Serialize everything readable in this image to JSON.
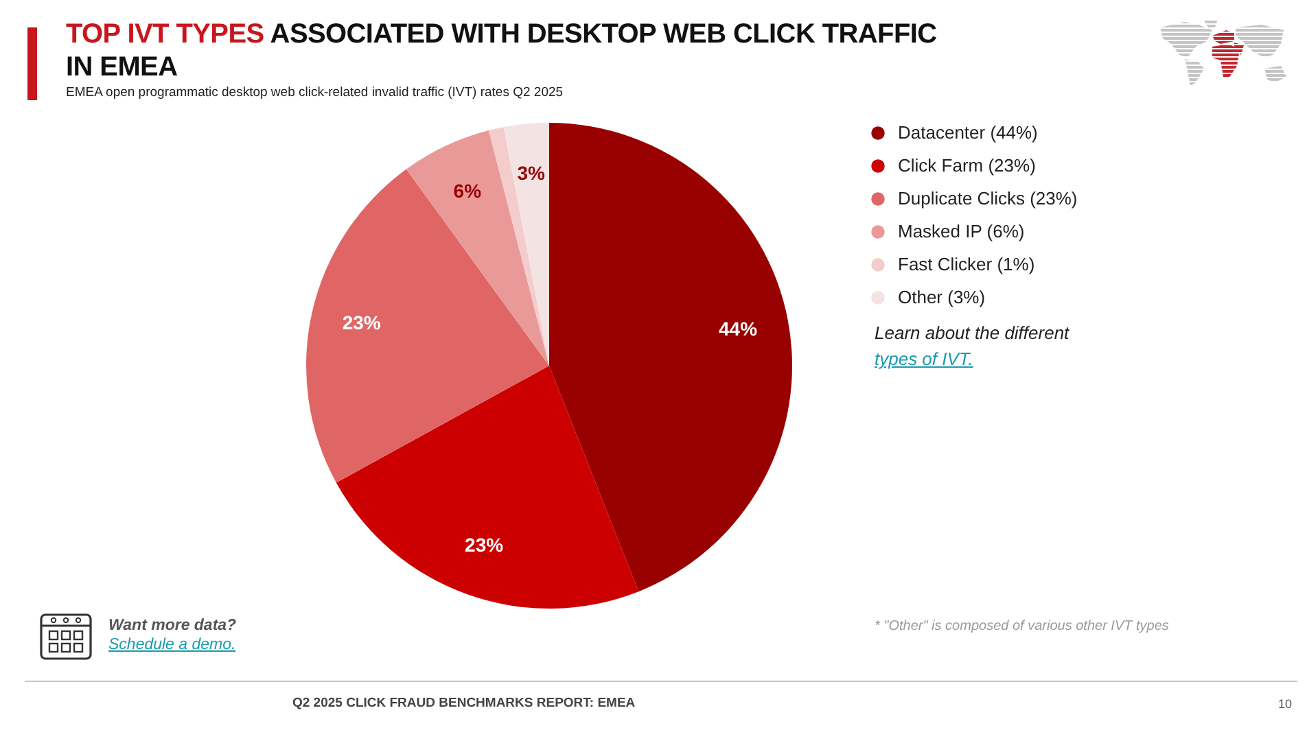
{
  "chart_data": {
    "type": "pie",
    "title": "TOP IVT TYPES ASSOCIATED WITH DESKTOP WEB CLICK TRAFFIC IN EMEA",
    "subtitle": "EMEA open programmatic desktop web click-related invalid traffic (IVT) rates Q2 2025",
    "categories": [
      "Datacenter (44%)",
      "Click Farm (23%)",
      "Duplicate Clicks (23%)",
      "Masked IP (6%)",
      "Fast Clicker (1%)",
      "Other (3%)"
    ],
    "values": [
      44,
      23,
      23,
      6,
      1,
      3
    ],
    "value_labels": [
      "44%",
      "23%",
      "23%",
      "6%",
      null,
      "3%"
    ],
    "colors": [
      "#990000",
      "#cc0000",
      "#e06666",
      "#ea9999",
      "#f4cccc",
      "#f3e3e3"
    ],
    "legend": "top right",
    "annotations": [
      "Learn about the different",
      "types of IVT.",
      "Want more data?",
      "Schedule a demo.",
      "* \"Other\" is composed of various other IVT types",
      "Q2 2025 CLICK FRAUD BENCHMARKS REPORT: EMEA",
      "10"
    ]
  }
}
